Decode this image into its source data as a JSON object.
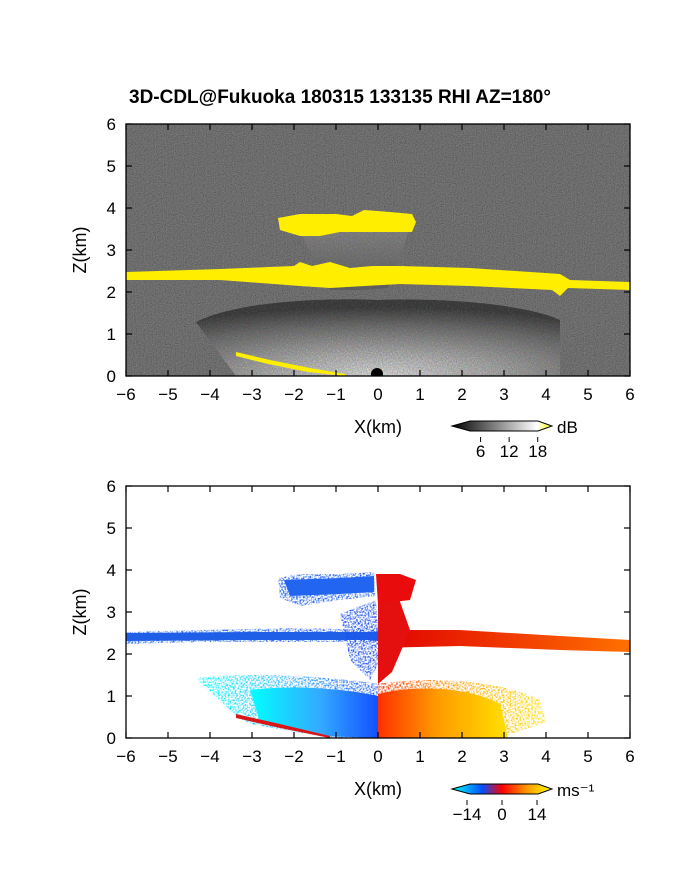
{
  "title": "3D-CDL@Fukuoka 180315 133135 RHI AZ=180°",
  "chart_data": [
    {
      "type": "heatmap",
      "name": "reflectivity-panel",
      "xlabel": "X(km)",
      "ylabel": "Z(km)",
      "xlim": [
        -6,
        6
      ],
      "ylim": [
        0,
        6
      ],
      "xticks": [
        "−6",
        "−5",
        "−4",
        "−3",
        "−2",
        "−1",
        "0",
        "1",
        "2",
        "3",
        "4",
        "5",
        "6"
      ],
      "yticks": [
        "0",
        "1",
        "2",
        "3",
        "4",
        "5",
        "6"
      ],
      "colorbar": {
        "unit": "dB",
        "ticks": [
          "6",
          "12",
          "18"
        ],
        "tick_values": [
          6,
          12,
          18
        ],
        "range": [
          0,
          21
        ],
        "colors": [
          "#000000",
          "#ffffff",
          "#ffff00"
        ]
      },
      "features": [
        {
          "label": "strong echo layer",
          "z_km": 2.3,
          "x_range": [
            -6,
            6
          ],
          "value_db": 20
        },
        {
          "label": "strong echo cap",
          "z_km": 3.6,
          "x_range": [
            -2.3,
            0.9
          ],
          "value_db": 20
        },
        {
          "label": "weaker echo region",
          "z_range": [
            0,
            1.5
          ],
          "x_range": [
            -4.2,
            4.2
          ],
          "value_db": 10
        }
      ]
    },
    {
      "type": "heatmap",
      "name": "velocity-panel",
      "xlabel": "X(km)",
      "ylabel": "Z(km)",
      "xlim": [
        -6,
        6
      ],
      "ylim": [
        0,
        6
      ],
      "xticks": [
        "−6",
        "−5",
        "−4",
        "−3",
        "−2",
        "−1",
        "0",
        "1",
        "2",
        "3",
        "4",
        "5",
        "6"
      ],
      "yticks": [
        "0",
        "1",
        "2",
        "3",
        "4",
        "5",
        "6"
      ],
      "colorbar": {
        "unit": "ms⁻¹",
        "ticks": [
          "−14",
          "0",
          "14"
        ],
        "tick_values": [
          -14,
          0,
          14
        ],
        "range": [
          -20,
          20
        ],
        "colors": [
          "#00ffff",
          "#0050ff",
          "#ff0000",
          "#ff9900",
          "#ffff00"
        ]
      },
      "features": [
        {
          "label": "negative (toward) velocities",
          "x_range": [
            -6,
            0
          ],
          "value_ms": -14
        },
        {
          "label": "positive (away) velocities",
          "x_range": [
            0,
            6
          ],
          "value_ms": 10
        }
      ]
    }
  ]
}
